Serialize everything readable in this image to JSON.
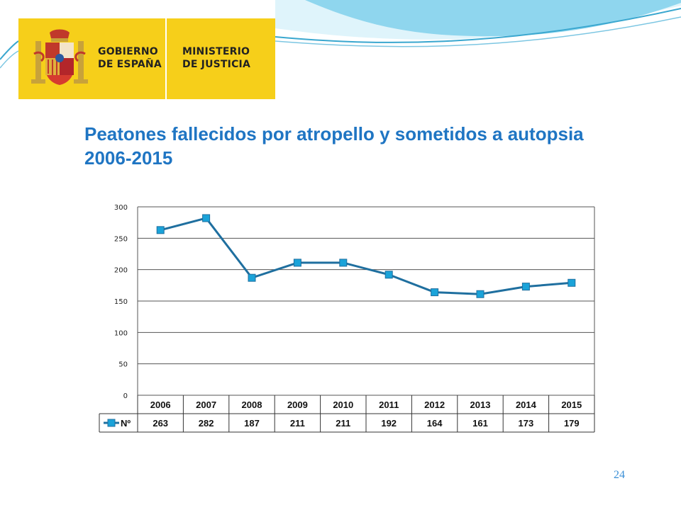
{
  "logo": {
    "line1a": "GOBIERNO",
    "line1b": "DE ESPAÑA",
    "line2a": "MINISTERIO",
    "line2b": "DE JUSTICIA"
  },
  "colors": {
    "title": "#1f75c3",
    "series": "#1f6f9f",
    "marker": "#1aa3d9",
    "logo_bg": "#f6cf1a"
  },
  "slide": {
    "title": "Peatones fallecidos por atropello y sometidos a autopsia 2006-2015",
    "page_number": "24"
  },
  "chart_data": {
    "type": "line",
    "categories": [
      "2006",
      "2007",
      "2008",
      "2009",
      "2010",
      "2011",
      "2012",
      "2013",
      "2014",
      "2015"
    ],
    "series": [
      {
        "name": "Nº",
        "values": [
          263,
          282,
          187,
          211,
          211,
          192,
          164,
          161,
          173,
          179
        ]
      }
    ],
    "y_ticks": [
      0,
      50,
      100,
      150,
      200,
      250,
      300
    ],
    "ylim": [
      0,
      300
    ],
    "grid": true,
    "legend": "data-table",
    "data_table": true
  }
}
